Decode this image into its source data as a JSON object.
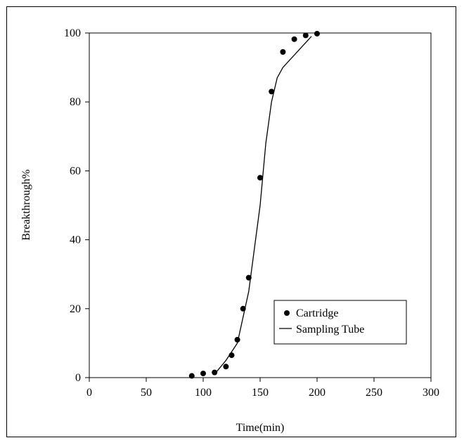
{
  "chart_data": {
    "type": "scatter",
    "title": "",
    "xlabel": "Time(min)",
    "ylabel": "Breakthrough%",
    "xlim": [
      0,
      300
    ],
    "ylim": [
      0,
      100
    ],
    "x_ticks": [
      0,
      50,
      100,
      150,
      200,
      250,
      300
    ],
    "y_ticks": [
      0,
      20,
      40,
      60,
      80,
      100
    ],
    "grid": false,
    "legend_position": "bottom-right",
    "series": [
      {
        "name": "Cartridge",
        "type": "scatter",
        "color": "#000000",
        "points": [
          {
            "x": 90,
            "y": 0.5
          },
          {
            "x": 100,
            "y": 1.2
          },
          {
            "x": 110,
            "y": 1.5
          },
          {
            "x": 120,
            "y": 3.2
          },
          {
            "x": 125,
            "y": 6.5
          },
          {
            "x": 130,
            "y": 11
          },
          {
            "x": 135,
            "y": 20
          },
          {
            "x": 140,
            "y": 29
          },
          {
            "x": 150,
            "y": 58
          },
          {
            "x": 160,
            "y": 83
          },
          {
            "x": 170,
            "y": 94.5
          },
          {
            "x": 180,
            "y": 98.2
          },
          {
            "x": 190,
            "y": 99.3
          },
          {
            "x": 200,
            "y": 99.8
          }
        ]
      },
      {
        "name": "Sampling Tube",
        "type": "line",
        "color": "#000000",
        "points": [
          {
            "x": 110,
            "y": 1
          },
          {
            "x": 120,
            "y": 5
          },
          {
            "x": 130,
            "y": 10
          },
          {
            "x": 140,
            "y": 25
          },
          {
            "x": 150,
            "y": 50
          },
          {
            "x": 155,
            "y": 68
          },
          {
            "x": 160,
            "y": 80
          },
          {
            "x": 165,
            "y": 87
          },
          {
            "x": 170,
            "y": 90
          },
          {
            "x": 195,
            "y": 99
          }
        ]
      }
    ]
  }
}
